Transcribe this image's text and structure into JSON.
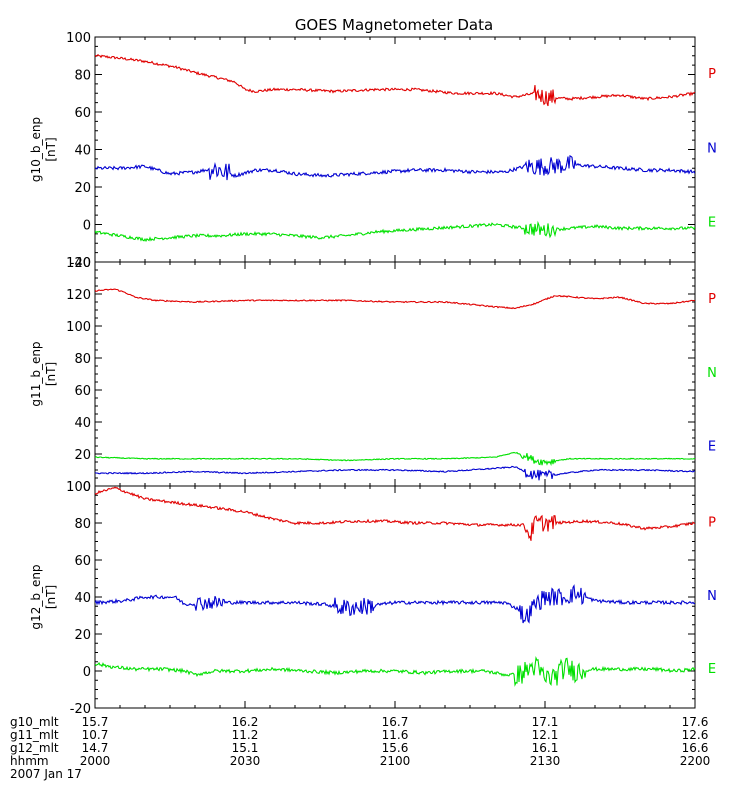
{
  "chart_data": {
    "type": "line",
    "title": "GOES Magnetometer Data",
    "x": {
      "start": 0,
      "end": 120,
      "unit": "minutes after 2000",
      "ticks": [
        0,
        30,
        60,
        90,
        120
      ]
    },
    "panels": [
      {
        "ylabel": "g10_b_enp",
        "yunit": "[nT]",
        "ylim": [
          -20,
          100
        ],
        "yticks": [
          -20,
          0,
          20,
          40,
          60,
          80,
          100
        ],
        "series": [
          {
            "name": "P",
            "color": "#e00000",
            "noise": 0.7,
            "spikes": [
              [
                88,
                92,
                4
              ]
            ],
            "points": [
              [
                0,
                90
              ],
              [
                4,
                89
              ],
              [
                10,
                87
              ],
              [
                16,
                84
              ],
              [
                20,
                81
              ],
              [
                25,
                78
              ],
              [
                28,
                76
              ],
              [
                30,
                72
              ],
              [
                32,
                71
              ],
              [
                36,
                72
              ],
              [
                40,
                72
              ],
              [
                48,
                71
              ],
              [
                56,
                72
              ],
              [
                64,
                72
              ],
              [
                72,
                70
              ],
              [
                76,
                70
              ],
              [
                80,
                70
              ],
              [
                84,
                68
              ],
              [
                88,
                70
              ],
              [
                90,
                68
              ],
              [
                95,
                67
              ],
              [
                100,
                68
              ],
              [
                105,
                69
              ],
              [
                110,
                67
              ],
              [
                115,
                68
              ],
              [
                120,
                70
              ]
            ]
          },
          {
            "name": "N",
            "color": "#0000d0",
            "noise": 0.9,
            "spikes": [
              [
                23,
                27,
                5
              ],
              [
                86,
                96,
                4
              ]
            ],
            "points": [
              [
                0,
                30
              ],
              [
                5,
                30
              ],
              [
                10,
                31
              ],
              [
                15,
                27
              ],
              [
                20,
                28
              ],
              [
                24,
                30
              ],
              [
                28,
                26
              ],
              [
                32,
                29
              ],
              [
                36,
                29
              ],
              [
                40,
                27
              ],
              [
                46,
                26
              ],
              [
                52,
                27
              ],
              [
                58,
                28
              ],
              [
                64,
                29
              ],
              [
                70,
                29
              ],
              [
                76,
                28
              ],
              [
                82,
                28
              ],
              [
                86,
                31
              ],
              [
                90,
                31
              ],
              [
                95,
                32
              ],
              [
                100,
                31
              ],
              [
                105,
                30
              ],
              [
                110,
                29
              ],
              [
                115,
                29
              ],
              [
                120,
                28
              ]
            ]
          },
          {
            "name": "E",
            "color": "#00e000",
            "noise": 0.8,
            "spikes": [
              [
                86,
                92,
                3
              ]
            ],
            "points": [
              [
                0,
                -4
              ],
              [
                5,
                -6
              ],
              [
                10,
                -8
              ],
              [
                15,
                -7
              ],
              [
                20,
                -6
              ],
              [
                25,
                -6
              ],
              [
                30,
                -5
              ],
              [
                35,
                -5
              ],
              [
                40,
                -6
              ],
              [
                45,
                -7
              ],
              [
                50,
                -6
              ],
              [
                56,
                -4
              ],
              [
                62,
                -3
              ],
              [
                68,
                -2
              ],
              [
                74,
                -1
              ],
              [
                80,
                0
              ],
              [
                86,
                -2
              ],
              [
                90,
                -3
              ],
              [
                95,
                -2
              ],
              [
                100,
                -1
              ],
              [
                105,
                -2
              ],
              [
                110,
                -2
              ],
              [
                115,
                -2
              ],
              [
                120,
                -2
              ]
            ]
          }
        ]
      },
      {
        "ylabel": "g11_b_enp",
        "yunit": "[nT]",
        "ylim": [
          0,
          140
        ],
        "yticks": [
          0,
          20,
          40,
          60,
          80,
          100,
          120,
          140
        ],
        "series": [
          {
            "name": "P",
            "color": "#e00000",
            "noise": 0.4,
            "spikes": [],
            "points": [
              [
                0,
                122
              ],
              [
                4,
                123
              ],
              [
                6,
                121
              ],
              [
                8,
                118
              ],
              [
                12,
                116
              ],
              [
                20,
                115
              ],
              [
                30,
                116
              ],
              [
                40,
                116
              ],
              [
                50,
                116
              ],
              [
                60,
                115
              ],
              [
                70,
                115
              ],
              [
                80,
                112
              ],
              [
                84,
                111
              ],
              [
                88,
                114
              ],
              [
                92,
                119
              ],
              [
                96,
                118
              ],
              [
                100,
                117
              ],
              [
                105,
                118
              ],
              [
                110,
                114
              ],
              [
                115,
                114
              ],
              [
                120,
                116
              ]
            ]
          },
          {
            "name": "N",
            "color": "#00e000",
            "noise": 0.3,
            "spikes": [
              [
                85,
                92,
                2
              ]
            ],
            "points": [
              [
                0,
                18
              ],
              [
                10,
                17
              ],
              [
                20,
                17
              ],
              [
                30,
                17
              ],
              [
                40,
                17
              ],
              [
                50,
                16
              ],
              [
                60,
                17
              ],
              [
                70,
                17
              ],
              [
                80,
                18
              ],
              [
                84,
                21
              ],
              [
                86,
                19
              ],
              [
                88,
                16
              ],
              [
                90,
                15
              ],
              [
                95,
                17
              ],
              [
                100,
                17
              ],
              [
                110,
                17
              ],
              [
                120,
                17
              ]
            ]
          },
          {
            "name": "E",
            "color": "#0000d0",
            "noise": 0.4,
            "spikes": [
              [
                86,
                92,
                3
              ]
            ],
            "points": [
              [
                0,
                8
              ],
              [
                10,
                8
              ],
              [
                20,
                9
              ],
              [
                30,
                8
              ],
              [
                40,
                9
              ],
              [
                50,
                10
              ],
              [
                60,
                10
              ],
              [
                70,
                9
              ],
              [
                80,
                11
              ],
              [
                84,
                12
              ],
              [
                86,
                9
              ],
              [
                88,
                7
              ],
              [
                90,
                6
              ],
              [
                94,
                8
              ],
              [
                100,
                10
              ],
              [
                110,
                10
              ],
              [
                120,
                9
              ]
            ]
          }
        ]
      },
      {
        "ylabel": "g12_b_enp",
        "yunit": "[nT]",
        "ylim": [
          -20,
          100
        ],
        "yticks": [
          -20,
          0,
          20,
          40,
          60,
          80,
          100
        ],
        "series": [
          {
            "name": "P",
            "color": "#e00000",
            "noise": 0.7,
            "spikes": [
              [
                86,
                92,
                4
              ]
            ],
            "points": [
              [
                0,
                96
              ],
              [
                4,
                99
              ],
              [
                6,
                97
              ],
              [
                10,
                93
              ],
              [
                16,
                91
              ],
              [
                22,
                89
              ],
              [
                30,
                86
              ],
              [
                36,
                82
              ],
              [
                40,
                80
              ],
              [
                46,
                80
              ],
              [
                52,
                81
              ],
              [
                58,
                81
              ],
              [
                64,
                80
              ],
              [
                70,
                80
              ],
              [
                76,
                79
              ],
              [
                82,
                79
              ],
              [
                86,
                79
              ],
              [
                87,
                73
              ],
              [
                88,
                80
              ],
              [
                92,
                80
              ],
              [
                98,
                81
              ],
              [
                104,
                80
              ],
              [
                110,
                77
              ],
              [
                115,
                78
              ],
              [
                120,
                80
              ]
            ]
          },
          {
            "name": "N",
            "color": "#0000d0",
            "noise": 0.9,
            "spikes": [
              [
                20,
                26,
                3
              ],
              [
                48,
                56,
                4
              ],
              [
                85,
                98,
                4
              ]
            ],
            "points": [
              [
                0,
                37
              ],
              [
                6,
                38
              ],
              [
                10,
                40
              ],
              [
                16,
                40
              ],
              [
                18,
                36
              ],
              [
                22,
                37
              ],
              [
                28,
                37
              ],
              [
                34,
                37
              ],
              [
                40,
                37
              ],
              [
                46,
                36
              ],
              [
                50,
                34
              ],
              [
                54,
                35
              ],
              [
                60,
                37
              ],
              [
                66,
                37
              ],
              [
                72,
                37
              ],
              [
                78,
                37
              ],
              [
                82,
                37
              ],
              [
                85,
                33
              ],
              [
                86,
                28
              ],
              [
                88,
                36
              ],
              [
                90,
                40
              ],
              [
                94,
                40
              ],
              [
                96,
                42
              ],
              [
                100,
                38
              ],
              [
                106,
                37
              ],
              [
                112,
                37
              ],
              [
                120,
                37
              ]
            ]
          },
          {
            "name": "E",
            "color": "#00e000",
            "noise": 0.9,
            "spikes": [
              [
                84,
                98,
                5
              ]
            ],
            "points": [
              [
                0,
                4
              ],
              [
                4,
                2
              ],
              [
                8,
                1
              ],
              [
                14,
                1
              ],
              [
                18,
                0
              ],
              [
                20,
                -2
              ],
              [
                24,
                0
              ],
              [
                30,
                0
              ],
              [
                36,
                1
              ],
              [
                42,
                0
              ],
              [
                48,
                -1
              ],
              [
                54,
                0
              ],
              [
                60,
                0
              ],
              [
                66,
                -1
              ],
              [
                72,
                0
              ],
              [
                78,
                0
              ],
              [
                82,
                -2
              ],
              [
                85,
                -2
              ],
              [
                88,
                3
              ],
              [
                90,
                -4
              ],
              [
                92,
                -3
              ],
              [
                94,
                2
              ],
              [
                96,
                0
              ],
              [
                100,
                1
              ],
              [
                106,
                1
              ],
              [
                112,
                1
              ],
              [
                116,
                0
              ],
              [
                120,
                1
              ]
            ]
          }
        ]
      }
    ],
    "info_rows": [
      {
        "label": "g10_mlt",
        "values": [
          "15.7",
          "16.2",
          "16.7",
          "17.1",
          "17.6"
        ]
      },
      {
        "label": "g11_mlt",
        "values": [
          "10.7",
          "11.2",
          "11.6",
          "12.1",
          "12.6"
        ]
      },
      {
        "label": "g12_mlt",
        "values": [
          "14.7",
          "15.1",
          "15.6",
          "16.1",
          "16.6"
        ]
      },
      {
        "label": "hhmm",
        "values": [
          "2000",
          "2030",
          "2100",
          "2130",
          "2200"
        ]
      }
    ],
    "date": "2007 Jan 17"
  }
}
